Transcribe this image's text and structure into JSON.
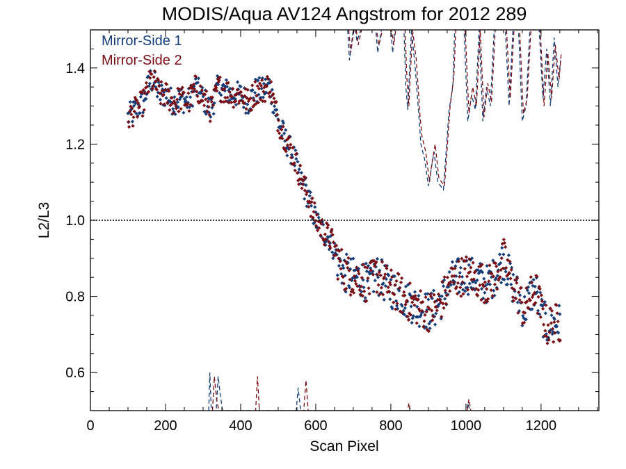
{
  "chart_data": {
    "type": "scatter",
    "title": "MODIS/Aqua AV124 Angstrom for 2012 289",
    "xlabel": "Scan Pixel",
    "ylabel": "L2/L3",
    "xlim": [
      0,
      1354
    ],
    "ylim": [
      0.5,
      1.5
    ],
    "x_ticks": [
      0,
      200,
      400,
      600,
      800,
      1000,
      1200
    ],
    "x_tick_labels": [
      "0",
      "200",
      "400",
      "600",
      "800",
      "1000",
      "1200"
    ],
    "y_ticks": [
      0.6,
      0.8,
      1.0,
      1.2,
      1.4
    ],
    "y_tick_labels": [
      "0.6",
      "0.8",
      "1.0",
      "1.2",
      "1.4"
    ],
    "reference_line": {
      "y": 1.0,
      "style": "dotted"
    },
    "legend_position": "top-left",
    "series": [
      {
        "name": "Mirror-Side 1",
        "color": "#143c78",
        "marker": "diamond",
        "trend": [
          [
            100,
            1.27
          ],
          [
            120,
            1.29
          ],
          [
            140,
            1.31
          ],
          [
            160,
            1.37
          ],
          [
            170,
            1.36
          ],
          [
            185,
            1.33
          ],
          [
            200,
            1.33
          ],
          [
            220,
            1.31
          ],
          [
            240,
            1.32
          ],
          [
            260,
            1.31
          ],
          [
            280,
            1.35
          ],
          [
            300,
            1.32
          ],
          [
            320,
            1.29
          ],
          [
            340,
            1.35
          ],
          [
            360,
            1.34
          ],
          [
            380,
            1.33
          ],
          [
            400,
            1.33
          ],
          [
            420,
            1.31
          ],
          [
            440,
            1.34
          ],
          [
            460,
            1.34
          ],
          [
            475,
            1.36
          ],
          [
            490,
            1.3
          ],
          [
            500,
            1.26
          ],
          [
            520,
            1.21
          ],
          [
            540,
            1.17
          ],
          [
            560,
            1.11
          ],
          [
            580,
            1.06
          ],
          [
            600,
            1.0
          ],
          [
            620,
            0.97
          ],
          [
            640,
            0.95
          ],
          [
            660,
            0.89
          ],
          [
            680,
            0.86
          ],
          [
            700,
            0.85
          ],
          [
            720,
            0.85
          ],
          [
            740,
            0.83
          ],
          [
            760,
            0.86
          ],
          [
            780,
            0.84
          ],
          [
            800,
            0.82
          ],
          [
            820,
            0.81
          ],
          [
            840,
            0.79
          ],
          [
            860,
            0.78
          ],
          [
            880,
            0.77
          ],
          [
            900,
            0.76
          ],
          [
            920,
            0.77
          ],
          [
            940,
            0.8
          ],
          [
            960,
            0.84
          ],
          [
            980,
            0.85
          ],
          [
            1000,
            0.86
          ],
          [
            1020,
            0.85
          ],
          [
            1040,
            0.84
          ],
          [
            1060,
            0.83
          ],
          [
            1080,
            0.86
          ],
          [
            1100,
            0.9
          ],
          [
            1120,
            0.84
          ],
          [
            1140,
            0.8
          ],
          [
            1155,
            0.76
          ],
          [
            1170,
            0.8
          ],
          [
            1185,
            0.82
          ],
          [
            1200,
            0.76
          ],
          [
            1215,
            0.72
          ],
          [
            1230,
            0.73
          ],
          [
            1250,
            0.73
          ]
        ],
        "scatter_width": 0.035,
        "upper_dashed": [
          [
            685,
            1.5
          ],
          [
            690,
            1.42
          ],
          [
            700,
            1.5
          ],
          [
            705,
            1.5
          ],
          [
            710,
            1.47
          ],
          [
            720,
            1.5
          ],
          [
            760,
            1.5
          ],
          [
            765,
            1.44
          ],
          [
            775,
            1.5
          ],
          [
            800,
            1.5
          ],
          [
            805,
            1.44
          ],
          [
            810,
            1.5
          ],
          [
            835,
            1.5
          ],
          [
            840,
            1.35
          ],
          [
            845,
            1.29
          ],
          [
            855,
            1.5
          ],
          [
            865,
            1.4
          ],
          [
            875,
            1.27
          ],
          [
            880,
            1.2
          ],
          [
            890,
            1.16
          ],
          [
            900,
            1.09
          ],
          [
            905,
            1.12
          ],
          [
            915,
            1.18
          ],
          [
            925,
            1.1
          ],
          [
            940,
            1.08
          ],
          [
            955,
            1.29
          ],
          [
            965,
            1.35
          ],
          [
            970,
            1.5
          ],
          [
            995,
            1.5
          ],
          [
            1005,
            1.26
          ],
          [
            1015,
            1.33
          ],
          [
            1025,
            1.29
          ],
          [
            1035,
            1.5
          ],
          [
            1045,
            1.26
          ],
          [
            1055,
            1.35
          ],
          [
            1065,
            1.3
          ],
          [
            1075,
            1.5
          ],
          [
            1105,
            1.5
          ],
          [
            1115,
            1.3
          ],
          [
            1125,
            1.5
          ],
          [
            1140,
            1.5
          ],
          [
            1150,
            1.26
          ],
          [
            1160,
            1.3
          ],
          [
            1170,
            1.5
          ],
          [
            1195,
            1.5
          ],
          [
            1205,
            1.32
          ],
          [
            1215,
            1.45
          ],
          [
            1225,
            1.3
          ],
          [
            1235,
            1.48
          ],
          [
            1245,
            1.35
          ],
          [
            1252,
            1.42
          ]
        ],
        "lower_dashed": [
          [
            315,
            0.5
          ],
          [
            318,
            0.6
          ],
          [
            322,
            0.5
          ],
          [
            335,
            0.5
          ],
          [
            340,
            0.59
          ],
          [
            346,
            0.54
          ],
          [
            352,
            0.5
          ],
          [
            548,
            0.5
          ],
          [
            553,
            0.56
          ],
          [
            560,
            0.5
          ],
          [
            1002,
            0.5
          ],
          [
            1005,
            0.52
          ],
          [
            1010,
            0.5
          ]
        ]
      },
      {
        "name": "Mirror-Side 2",
        "color": "#7a0d14",
        "marker": "diamond",
        "trend": [
          [
            100,
            1.27
          ],
          [
            120,
            1.29
          ],
          [
            140,
            1.31
          ],
          [
            160,
            1.37
          ],
          [
            170,
            1.36
          ],
          [
            185,
            1.33
          ],
          [
            200,
            1.33
          ],
          [
            220,
            1.31
          ],
          [
            240,
            1.32
          ],
          [
            260,
            1.31
          ],
          [
            280,
            1.35
          ],
          [
            300,
            1.32
          ],
          [
            320,
            1.29
          ],
          [
            340,
            1.35
          ],
          [
            360,
            1.34
          ],
          [
            380,
            1.33
          ],
          [
            400,
            1.33
          ],
          [
            420,
            1.31
          ],
          [
            440,
            1.34
          ],
          [
            460,
            1.34
          ],
          [
            475,
            1.36
          ],
          [
            490,
            1.3
          ],
          [
            500,
            1.26
          ],
          [
            520,
            1.21
          ],
          [
            540,
            1.17
          ],
          [
            560,
            1.11
          ],
          [
            580,
            1.06
          ],
          [
            600,
            1.0
          ],
          [
            620,
            0.97
          ],
          [
            640,
            0.95
          ],
          [
            660,
            0.89
          ],
          [
            680,
            0.86
          ],
          [
            700,
            0.85
          ],
          [
            720,
            0.85
          ],
          [
            740,
            0.83
          ],
          [
            760,
            0.86
          ],
          [
            780,
            0.84
          ],
          [
            800,
            0.82
          ],
          [
            820,
            0.81
          ],
          [
            840,
            0.79
          ],
          [
            860,
            0.78
          ],
          [
            880,
            0.77
          ],
          [
            900,
            0.76
          ],
          [
            920,
            0.77
          ],
          [
            940,
            0.8
          ],
          [
            960,
            0.84
          ],
          [
            980,
            0.85
          ],
          [
            1000,
            0.86
          ],
          [
            1020,
            0.85
          ],
          [
            1040,
            0.84
          ],
          [
            1060,
            0.83
          ],
          [
            1080,
            0.86
          ],
          [
            1100,
            0.9
          ],
          [
            1120,
            0.84
          ],
          [
            1140,
            0.8
          ],
          [
            1155,
            0.76
          ],
          [
            1170,
            0.8
          ],
          [
            1185,
            0.82
          ],
          [
            1200,
            0.76
          ],
          [
            1215,
            0.72
          ],
          [
            1230,
            0.73
          ],
          [
            1250,
            0.73
          ]
        ],
        "scatter_width": 0.035,
        "upper_dashed": [
          [
            688,
            1.5
          ],
          [
            693,
            1.44
          ],
          [
            702,
            1.5
          ],
          [
            708,
            1.5
          ],
          [
            713,
            1.46
          ],
          [
            722,
            1.5
          ],
          [
            762,
            1.5
          ],
          [
            768,
            1.46
          ],
          [
            778,
            1.5
          ],
          [
            802,
            1.5
          ],
          [
            808,
            1.46
          ],
          [
            813,
            1.5
          ],
          [
            838,
            1.5
          ],
          [
            843,
            1.37
          ],
          [
            848,
            1.3
          ],
          [
            858,
            1.5
          ],
          [
            868,
            1.42
          ],
          [
            878,
            1.27
          ],
          [
            883,
            1.22
          ],
          [
            893,
            1.18
          ],
          [
            903,
            1.1
          ],
          [
            908,
            1.14
          ],
          [
            918,
            1.2
          ],
          [
            928,
            1.11
          ],
          [
            943,
            1.09
          ],
          [
            958,
            1.3
          ],
          [
            968,
            1.38
          ],
          [
            973,
            1.5
          ],
          [
            998,
            1.5
          ],
          [
            1008,
            1.28
          ],
          [
            1018,
            1.35
          ],
          [
            1028,
            1.3
          ],
          [
            1038,
            1.5
          ],
          [
            1048,
            1.27
          ],
          [
            1058,
            1.36
          ],
          [
            1068,
            1.31
          ],
          [
            1078,
            1.5
          ],
          [
            1108,
            1.5
          ],
          [
            1118,
            1.32
          ],
          [
            1128,
            1.5
          ],
          [
            1143,
            1.5
          ],
          [
            1153,
            1.28
          ],
          [
            1163,
            1.32
          ],
          [
            1173,
            1.5
          ],
          [
            1198,
            1.5
          ],
          [
            1208,
            1.3
          ],
          [
            1218,
            1.44
          ],
          [
            1228,
            1.32
          ],
          [
            1238,
            1.46
          ],
          [
            1248,
            1.37
          ],
          [
            1254,
            1.44
          ]
        ],
        "lower_dashed": [
          [
            325,
            0.5
          ],
          [
            330,
            0.59
          ],
          [
            336,
            0.53
          ],
          [
            342,
            0.5
          ],
          [
            440,
            0.5
          ],
          [
            445,
            0.59
          ],
          [
            450,
            0.5
          ],
          [
            568,
            0.5
          ],
          [
            574,
            0.58
          ],
          [
            580,
            0.5
          ],
          [
            845,
            0.5
          ],
          [
            848,
            0.52
          ],
          [
            852,
            0.5
          ],
          [
            1003,
            0.5
          ],
          [
            1008,
            0.53
          ],
          [
            1013,
            0.5
          ]
        ]
      }
    ]
  }
}
